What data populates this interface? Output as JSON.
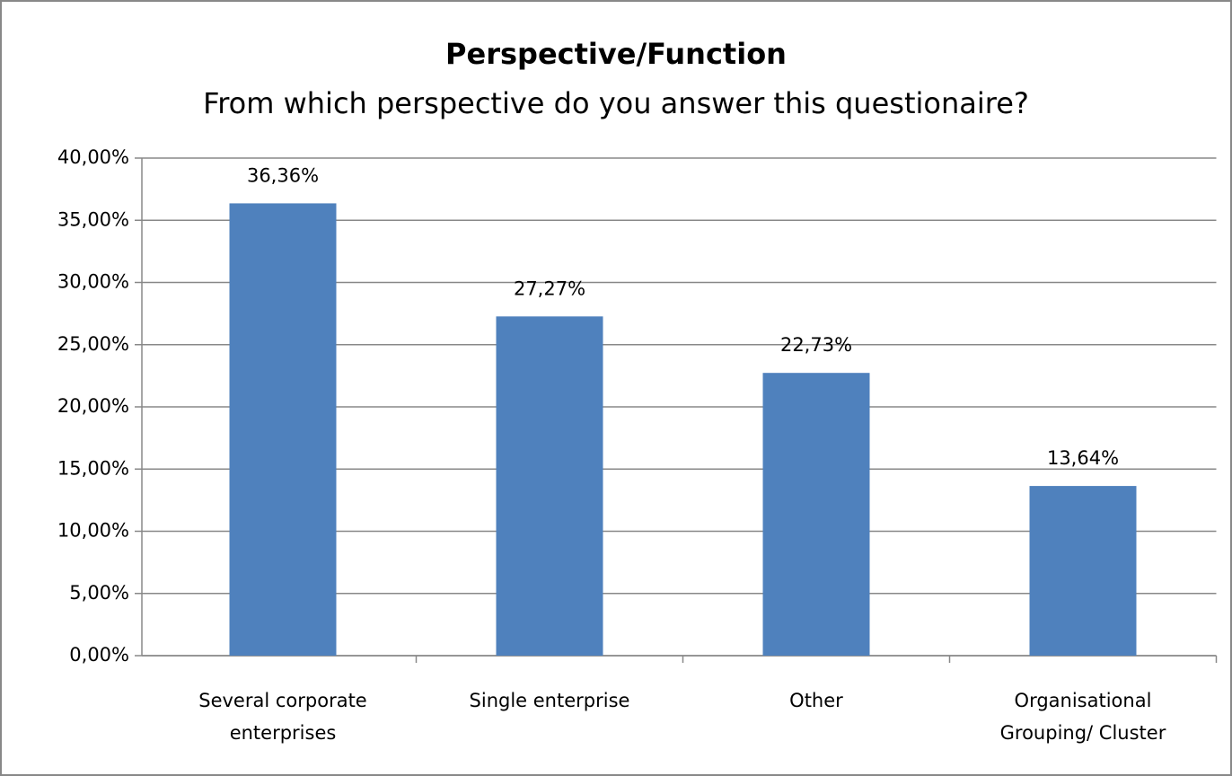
{
  "chart_data": {
    "type": "bar",
    "title": "Perspective/Function",
    "subtitle": "From which perspective do you answer this questionaire?",
    "categories": [
      "Several corporate enterprises",
      "Single enterprise",
      "Other",
      "Organisational Grouping/ Cluster"
    ],
    "values": [
      36.36,
      27.27,
      22.73,
      13.64
    ],
    "value_labels": [
      "36,36%",
      "27,27%",
      "22,73%",
      "13,64%"
    ],
    "color": "#4f81bd",
    "ylim": [
      0,
      40
    ],
    "yticks": [
      {
        "value": 0,
        "label": "0,00%"
      },
      {
        "value": 5,
        "label": "5,00%"
      },
      {
        "value": 10,
        "label": "10,00%"
      },
      {
        "value": 15,
        "label": "15,00%"
      },
      {
        "value": 20,
        "label": "20,00%"
      },
      {
        "value": 25,
        "label": "25,00%"
      },
      {
        "value": 30,
        "label": "30,00%"
      },
      {
        "value": 35,
        "label": "35,00%"
      },
      {
        "value": 40,
        "label": "40,00%"
      }
    ],
    "grid": true
  }
}
